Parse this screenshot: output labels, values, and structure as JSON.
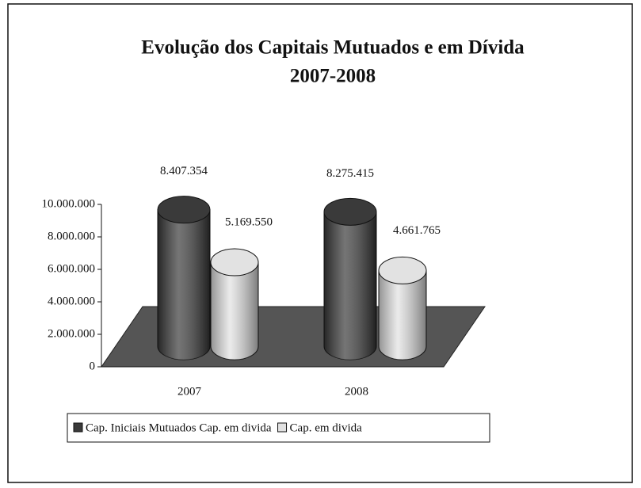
{
  "chart_data": {
    "type": "bar",
    "title": "Evolução dos Capitais Mutuados e em Dívida",
    "subtitle": "2007-2008",
    "categories": [
      "2007",
      "2008"
    ],
    "series": [
      {
        "name": "Cap. Iniciais Mutuados Cap. em divida",
        "color": "#3a3a3a",
        "values": [
          8407354,
          8275415
        ],
        "value_labels": [
          "8.407.354",
          "8.275.415"
        ]
      },
      {
        "name": "Cap. em divida",
        "color": "#e2e2e2",
        "values": [
          5169550,
          4661765
        ],
        "value_labels": [
          "5.169.550",
          "4.661.765"
        ]
      }
    ],
    "ylim": [
      0,
      10000000
    ],
    "yticks": [
      0,
      {
        "value": 2000000,
        "label": "2.000.000"
      },
      {
        "value": 4000000,
        "label": "4.000.000"
      },
      {
        "value": 6000000,
        "label": "6.000.000"
      },
      {
        "value": 8000000,
        "label": "8.000.000"
      },
      {
        "value": 10000000,
        "label": "10.000.000"
      }
    ],
    "grid": false,
    "legend": "bottom"
  }
}
